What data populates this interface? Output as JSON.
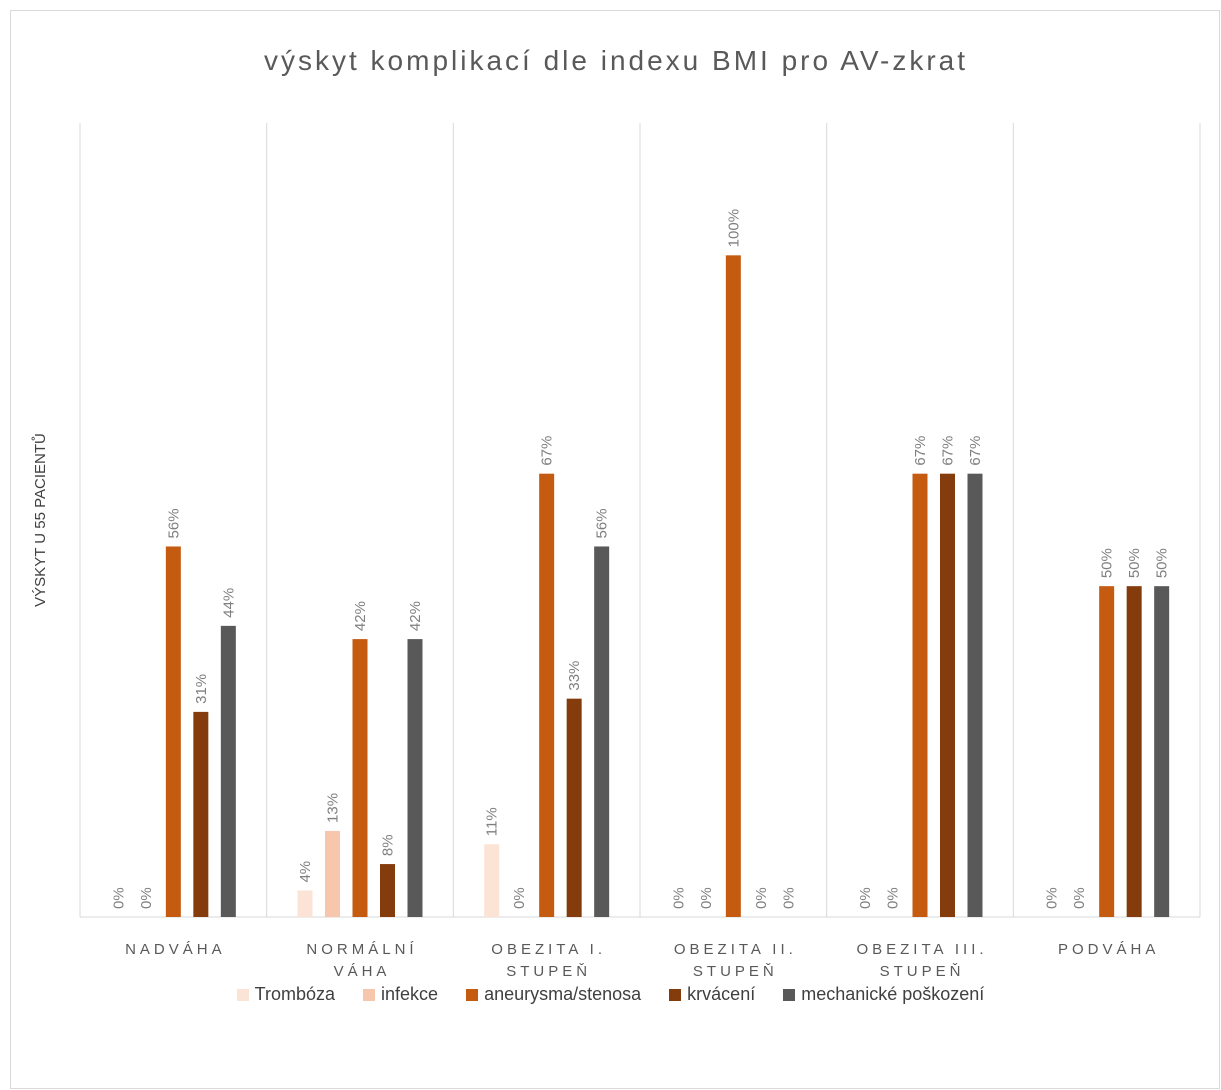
{
  "chart_data": {
    "type": "bar",
    "title": "výskyt komplikací dle indexu BMI pro AV-zkrat",
    "y_label": "VÝSKYT U 55 PACIENTŮ",
    "categories": [
      "NADVÁHA",
      "NORMÁLNÍ VÁHA",
      "OBEZITA I. STUPEŇ",
      "OBEZITA II. STUPEŇ",
      "OBEZITA III. STUPEŇ",
      "PODVÁHA"
    ],
    "series": [
      {
        "name": "Trombóza",
        "color": "#fbe3d6",
        "values": [
          0,
          4,
          11,
          0,
          0,
          0
        ],
        "value_labels": [
          "0%",
          "4%",
          "11%",
          "0%",
          "0%",
          "0%"
        ]
      },
      {
        "name": "infekce",
        "color": "#f6c6ad",
        "values": [
          0,
          13,
          0,
          0,
          0,
          0
        ],
        "value_labels": [
          "0%",
          "13%",
          "0%",
          "0%",
          "0%",
          "0%"
        ]
      },
      {
        "name": "aneurysma/stenosa",
        "color": "#c55a11",
        "values": [
          56,
          42,
          67,
          100,
          67,
          50
        ],
        "value_labels": [
          "56%",
          "42%",
          "67%",
          "100%",
          "67%",
          "50%"
        ]
      },
      {
        "name": "krvácení",
        "color": "#843c0c",
        "values": [
          31,
          8,
          33,
          0,
          67,
          50
        ],
        "value_labels": [
          "31%",
          "8%",
          "33%",
          "0%",
          "67%",
          "50%"
        ]
      },
      {
        "name": "mechanické poškození",
        "color": "#595959",
        "values": [
          44,
          42,
          56,
          0,
          67,
          50
        ],
        "value_labels": [
          "44%",
          "42%",
          "56%",
          "0%",
          "67%",
          "50%"
        ]
      }
    ],
    "ylim": [
      0,
      120
    ]
  }
}
